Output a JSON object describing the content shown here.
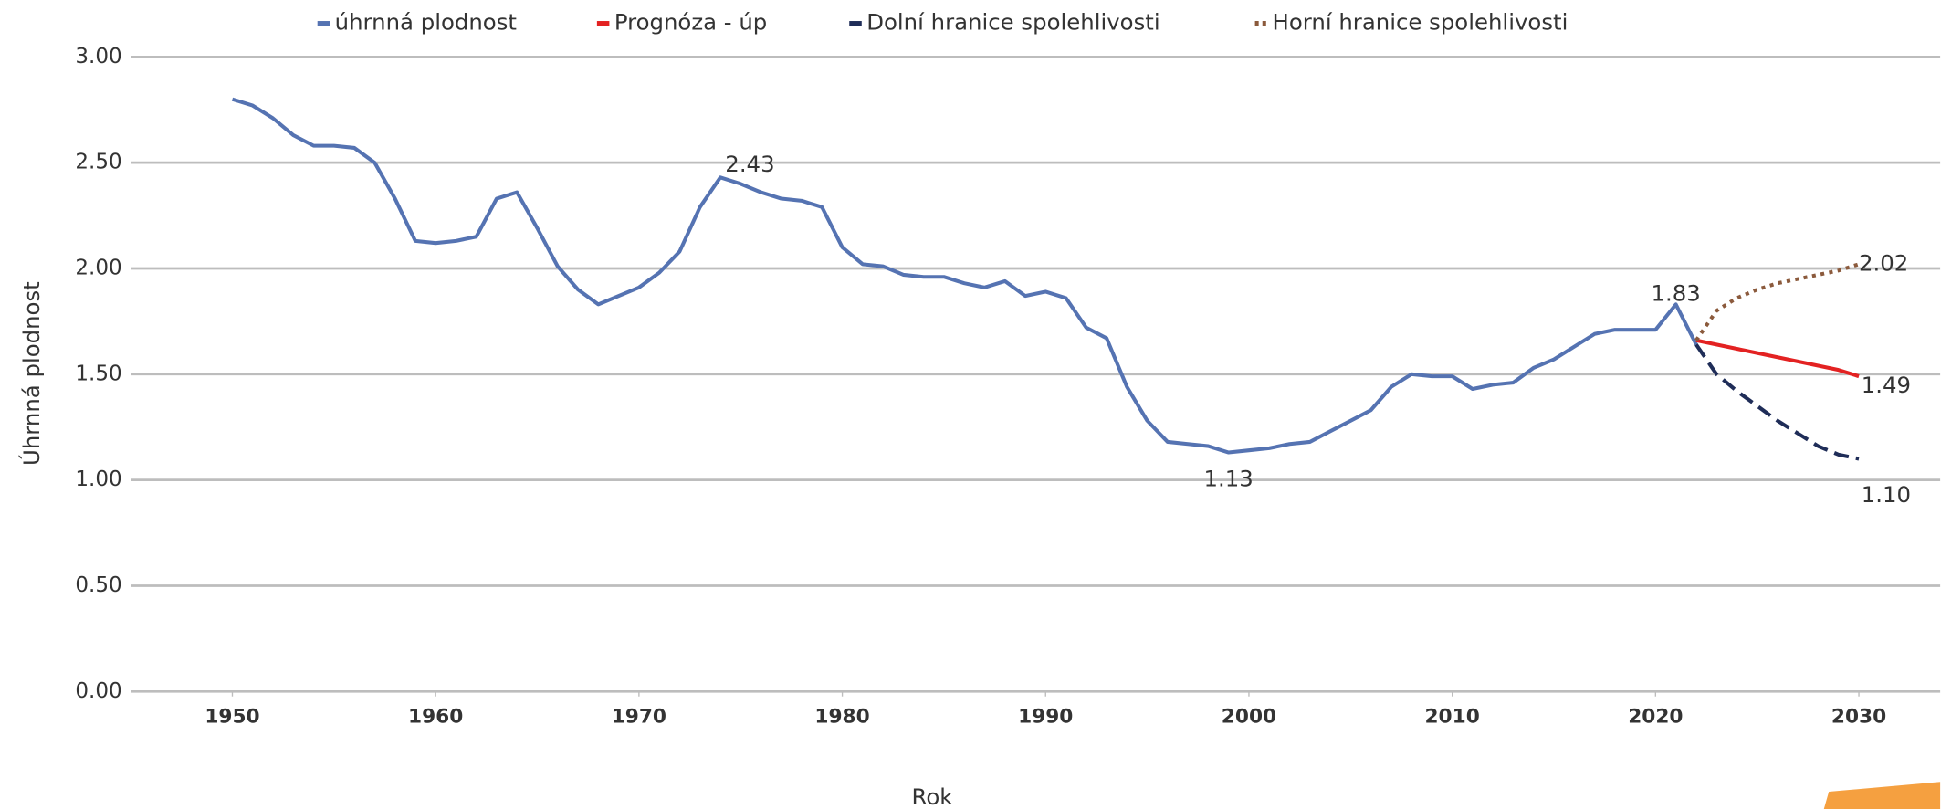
{
  "chart_data": {
    "type": "line",
    "xlabel": "Rok",
    "ylabel": "Úhrnná plodnost",
    "xlim": [
      1945,
      2034
    ],
    "ylim": [
      0,
      3
    ],
    "xticks": [
      1950,
      1960,
      1970,
      1980,
      1990,
      2000,
      2010,
      2020,
      2030
    ],
    "yticks": [
      {
        "value": 0,
        "label": "0.00"
      },
      {
        "value": 0.5,
        "label": "0.50"
      },
      {
        "value": 1,
        "label": "1.00"
      },
      {
        "value": 1.5,
        "label": "1.50"
      },
      {
        "value": 2,
        "label": "2.00"
      },
      {
        "value": 2.5,
        "label": "2.50"
      },
      {
        "value": 3,
        "label": "3.00"
      }
    ],
    "grid": true,
    "legend": "top",
    "series": [
      {
        "name": "úhrnná plodnost",
        "color": "#5573b2",
        "style": "solid",
        "x": [
          1950,
          1951,
          1952,
          1953,
          1954,
          1955,
          1956,
          1957,
          1958,
          1959,
          1960,
          1961,
          1962,
          1963,
          1964,
          1965,
          1966,
          1967,
          1968,
          1969,
          1970,
          1971,
          1972,
          1973,
          1974,
          1975,
          1976,
          1977,
          1978,
          1979,
          1980,
          1981,
          1982,
          1983,
          1984,
          1985,
          1986,
          1987,
          1988,
          1989,
          1990,
          1991,
          1992,
          1993,
          1994,
          1995,
          1996,
          1997,
          1998,
          1999,
          2000,
          2001,
          2002,
          2003,
          2004,
          2005,
          2006,
          2007,
          2008,
          2009,
          2010,
          2011,
          2012,
          2013,
          2014,
          2015,
          2016,
          2017,
          2018,
          2019,
          2020,
          2021,
          2022
        ],
        "values": [
          2.8,
          2.77,
          2.71,
          2.63,
          2.58,
          2.58,
          2.57,
          2.5,
          2.33,
          2.13,
          2.12,
          2.13,
          2.15,
          2.33,
          2.36,
          2.19,
          2.01,
          1.9,
          1.83,
          1.87,
          1.91,
          1.98,
          2.08,
          2.29,
          2.43,
          2.4,
          2.36,
          2.33,
          2.32,
          2.29,
          2.1,
          2.02,
          2.01,
          1.97,
          1.96,
          1.96,
          1.93,
          1.91,
          1.94,
          1.87,
          1.89,
          1.86,
          1.72,
          1.67,
          1.44,
          1.28,
          1.18,
          1.17,
          1.16,
          1.13,
          1.14,
          1.15,
          1.17,
          1.18,
          1.23,
          1.28,
          1.33,
          1.44,
          1.5,
          1.49,
          1.49,
          1.43,
          1.45,
          1.46,
          1.53,
          1.57,
          1.63,
          1.69,
          1.71,
          1.71,
          1.71,
          1.83,
          1.64
        ],
        "value_labels": [
          null,
          null,
          null,
          null,
          null,
          null,
          null,
          null,
          null,
          null,
          null,
          null,
          null,
          null,
          null,
          null,
          null,
          null,
          null,
          null,
          null,
          null,
          null,
          null,
          "2.43",
          null,
          null,
          null,
          null,
          null,
          null,
          null,
          null,
          null,
          null,
          null,
          null,
          null,
          null,
          null,
          null,
          null,
          null,
          null,
          null,
          null,
          null,
          null,
          null,
          "1.13",
          null,
          null,
          null,
          null,
          null,
          null,
          null,
          null,
          null,
          null,
          null,
          null,
          null,
          null,
          null,
          null,
          null,
          null,
          null,
          null,
          null,
          "1.83",
          null
        ]
      },
      {
        "name": "Prognóza - úp",
        "color": "#e32222",
        "style": "solid",
        "x": [
          2022,
          2023,
          2024,
          2025,
          2026,
          2027,
          2028,
          2029,
          2030
        ],
        "values": [
          1.66,
          1.64,
          1.62,
          1.6,
          1.58,
          1.56,
          1.54,
          1.52,
          1.49
        ],
        "value_labels": [
          null,
          null,
          null,
          null,
          null,
          null,
          null,
          null,
          "1.49"
        ]
      },
      {
        "name": "Dolní hranice spolehlivosti",
        "color": "#1f2d58",
        "style": "dashed",
        "x": [
          2022,
          2023,
          2024,
          2025,
          2026,
          2027,
          2028,
          2029,
          2030
        ],
        "values": [
          1.64,
          1.5,
          1.42,
          1.35,
          1.28,
          1.22,
          1.16,
          1.12,
          1.1
        ],
        "value_labels": [
          null,
          null,
          null,
          null,
          null,
          null,
          null,
          null,
          "1.10"
        ]
      },
      {
        "name": "Horní hranice spolehlivosti",
        "color": "#8b5a3c",
        "style": "dotted",
        "x": [
          2022,
          2023,
          2024,
          2025,
          2026,
          2027,
          2028,
          2029,
          2030
        ],
        "values": [
          1.66,
          1.8,
          1.86,
          1.9,
          1.93,
          1.95,
          1.97,
          1.99,
          2.02
        ],
        "value_labels": [
          null,
          null,
          null,
          null,
          null,
          null,
          null,
          null,
          "2.02"
        ]
      }
    ]
  }
}
